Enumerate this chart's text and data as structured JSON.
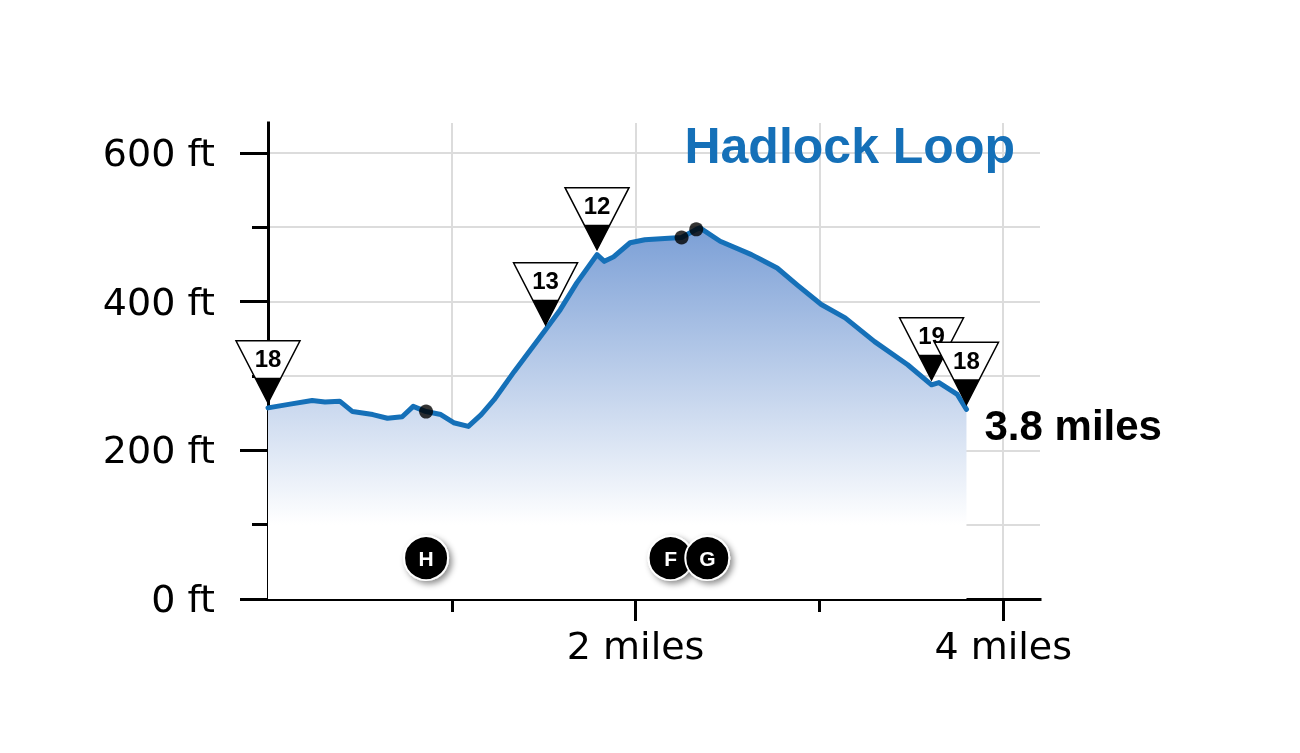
{
  "chart_data": {
    "type": "area",
    "title": "Hadlock Loop",
    "series": [
      {
        "color": "#1570b8",
        "x": [
          0,
          0.12,
          0.24,
          0.31,
          0.39,
          0.46,
          0.57,
          0.65,
          0.73,
          0.79,
          0.86,
          0.94,
          1.01,
          1.09,
          1.16,
          1.23,
          1.34,
          1.51,
          1.59,
          1.68,
          1.79,
          1.83,
          1.88,
          1.97,
          2.05,
          2.18,
          2.25,
          2.33,
          2.35,
          2.46,
          2.63,
          2.77,
          2.88,
          3.01,
          3.14,
          3.3,
          3.48,
          3.61,
          3.65,
          3.75,
          3.8
        ],
        "values": [
          257,
          262,
          267,
          265,
          266,
          252,
          248,
          243,
          245,
          259,
          252,
          248,
          237,
          232,
          248,
          268,
          306,
          362,
          389,
          425,
          463,
          454,
          460,
          479,
          483,
          485,
          486,
          497,
          499,
          481,
          463,
          445,
          422,
          396,
          378,
          346,
          315,
          288,
          291,
          275,
          255
        ]
      },
      {
        "type": "scatter",
        "color": "#000000",
        "marker": "circle",
        "x": [
          0.86,
          2.25,
          2.33
        ],
        "values": [
          252,
          486,
          497
        ]
      }
    ],
    "xlim": [
      0,
      4.2
    ],
    "xticks": [
      {
        "value": 1,
        "label": null
      },
      {
        "value": 2,
        "label": "2 miles"
      },
      {
        "value": 3,
        "label": null
      },
      {
        "value": 4,
        "label": "4 miles"
      }
    ],
    "ylim": [
      0,
      640
    ],
    "yticks": [
      {
        "value": 0,
        "label": "0 ft"
      },
      {
        "value": 100,
        "label": null
      },
      {
        "value": 200,
        "label": "200 ft"
      },
      {
        "value": 300,
        "label": null
      },
      {
        "value": 400,
        "label": "400 ft"
      },
      {
        "value": 500,
        "label": null
      },
      {
        "value": 600,
        "label": "600 ft"
      }
    ],
    "grid": true,
    "marker": "none",
    "line_style": "solid",
    "annotations": [
      "3.8 miles",
      {
        "text": "18",
        "x": 0,
        "y": 257
      },
      {
        "text": "13",
        "x": 1.51,
        "y": 362
      },
      {
        "text": "12",
        "x": 1.79,
        "y": 463
      },
      {
        "text": "19",
        "x": 3.61,
        "y": 288
      },
      {
        "text": "18",
        "x": 3.8,
        "y": 255
      },
      {
        "text": "H",
        "x": 0.86,
        "y": 55
      },
      {
        "text": "F",
        "x": 2.19,
        "y": 55
      },
      {
        "text": "G",
        "x": 2.39,
        "y": 55
      }
    ]
  }
}
